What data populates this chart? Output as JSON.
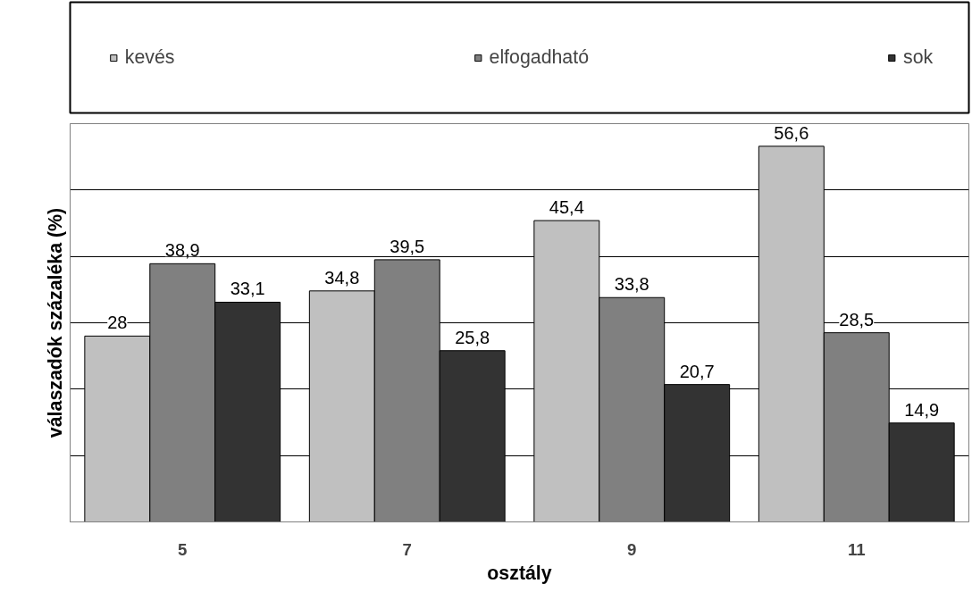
{
  "chart_data": {
    "type": "bar",
    "xlabel": "osztály",
    "ylabel": "válaszadók százaléka (%)",
    "categories": [
      "5",
      "7",
      "9",
      "11"
    ],
    "ylim": [
      0,
      60
    ],
    "yticks": [
      {
        "value": 0,
        "label": null
      },
      {
        "value": 10,
        "label": null
      },
      {
        "value": 20,
        "label": null
      },
      {
        "value": 30,
        "label": null
      },
      {
        "value": 40,
        "label": null
      },
      {
        "value": 50,
        "label": null
      },
      {
        "value": 60,
        "label": null
      }
    ],
    "tick_labels": "x",
    "grid": "y",
    "legend": "top",
    "series": [
      {
        "name": "kevés",
        "color": "#c0c0c0",
        "values": [
          28,
          34.8,
          45.4,
          56.6
        ],
        "value_labels": [
          "28",
          "34,8",
          "45,4",
          "56,6"
        ]
      },
      {
        "name": "elfogadható",
        "color": "#808080",
        "values": [
          38.9,
          39.5,
          33.8,
          28.5
        ],
        "value_labels": [
          "38,9",
          "39,5",
          "33,8",
          "28,5"
        ]
      },
      {
        "name": "sok",
        "color": "#333333",
        "values": [
          33.1,
          25.8,
          20.7,
          14.9
        ],
        "value_labels": [
          "33,1",
          "25,8",
          "20,7",
          "14,9"
        ]
      }
    ]
  }
}
